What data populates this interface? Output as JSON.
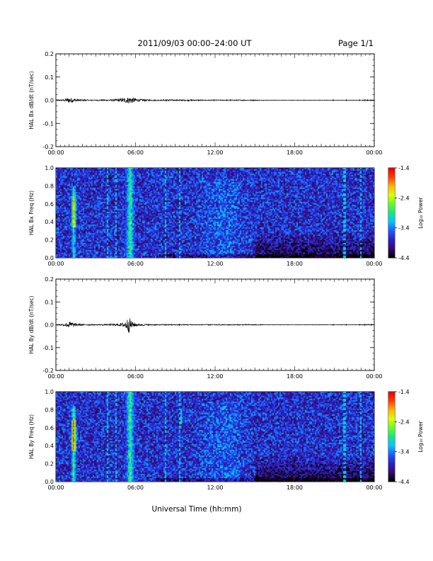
{
  "header": {
    "title": "2011/09/03  00:00–24:00 UT",
    "page": "Page 1/1"
  },
  "x_axis_title": "Universal Time (hh:mm)",
  "colors": {
    "trace": "#000000",
    "frame": "#000000",
    "colormap": [
      "#000000",
      "#3b0a6e",
      "#2a1fc8",
      "#1f5aff",
      "#00c8ff",
      "#14e68c",
      "#64ff1e",
      "#dcff00",
      "#ffb400",
      "#ff3c00",
      "#e60000"
    ]
  },
  "chart_data": [
    {
      "type": "line",
      "panel": "bx-dbdt",
      "ylabel": "HAL Bx dB/dt (nT/sec)",
      "xlim": [
        0,
        24
      ],
      "ylim": [
        -0.2,
        0.2
      ],
      "xtick_labels": [
        "00:00",
        "06:00",
        "12:00",
        "18:00",
        "00:00"
      ],
      "ytick_labels": [
        "0.2",
        "0.1",
        "0.0",
        "-0.1",
        "-0.2"
      ],
      "ytick_values": [
        0.2,
        0.1,
        0.0,
        -0.1,
        -0.2
      ],
      "series": [
        {
          "x": [
            0,
            0.5,
            0.8,
            1.0,
            1.2,
            1.5,
            2.0,
            3.0,
            4.0,
            4.5,
            5.0,
            5.3,
            5.6,
            5.9,
            6.3,
            7.0,
            8.0,
            8.5,
            9.0,
            10.0,
            11.0,
            12.0,
            13.0,
            14.0,
            15.0,
            16.0,
            17.0,
            18.0,
            19.0,
            20.0,
            21.0,
            22.0,
            23.0,
            23.5,
            24.0
          ],
          "y": [
            0.002,
            0.003,
            0.008,
            0.012,
            0.01,
            0.006,
            0.003,
            0.002,
            0.003,
            0.005,
            0.008,
            0.012,
            0.015,
            0.01,
            0.005,
            0.003,
            0.002,
            0.004,
            0.002,
            0.003,
            0.002,
            0.002,
            0.002,
            0.002,
            0.002,
            0.001,
            0.001,
            0.001,
            0.001,
            0.001,
            0.001,
            0.001,
            0.001,
            0.003,
            0.001
          ]
        }
      ]
    },
    {
      "type": "heatmap",
      "panel": "bx-spectrogram",
      "ylabel": "HAL Bx Freq (Hz)",
      "xlim": [
        0,
        24
      ],
      "ylim": [
        0,
        1.0
      ],
      "xtick_labels": [
        "00:00",
        "06:00",
        "12:00",
        "18:00",
        "00:00"
      ],
      "ytick_labels": [
        "1.0",
        "0.8",
        "0.6",
        "0.4",
        "0.2",
        "0.0"
      ],
      "ytick_values": [
        1.0,
        0.8,
        0.6,
        0.4,
        0.2,
        0.0
      ],
      "colorbar": {
        "label": "Log₁₀ Power",
        "range": [
          -4.4,
          -1.4
        ],
        "tick_labels": [
          "-1.4",
          "-2.4",
          "-3.4",
          "-4.4"
        ],
        "tick_values": [
          -1.4,
          -2.4,
          -3.4,
          -4.4
        ]
      },
      "bright_vertical_lines_hours": [
        3.8,
        4.5,
        8.2,
        9.3,
        21.7,
        22.9
      ],
      "features": [
        {
          "name": "pc1-band",
          "hours": [
            1.0,
            1.6
          ],
          "freq": [
            0.0,
            0.8
          ],
          "peak_log10": -2.0
        },
        {
          "name": "broadband-05",
          "hours": [
            5.0,
            6.1
          ],
          "freq": [
            0.0,
            1.0
          ],
          "peak_log10": -2.6
        },
        {
          "name": "patch-13h",
          "hours": [
            13.4,
            13.6
          ],
          "freq": [
            0.72,
            0.8
          ],
          "peak_log10": -2.5
        }
      ]
    },
    {
      "type": "line",
      "panel": "by-dbdt",
      "ylabel": "HAL By dB/dt (nT/sec)",
      "xlim": [
        0,
        24
      ],
      "ylim": [
        -0.2,
        0.2
      ],
      "xtick_labels": [
        "00:00",
        "06:00",
        "12:00",
        "18:00",
        "00:00"
      ],
      "ytick_labels": [
        "0.2",
        "0.1",
        "0.0",
        "-0.1",
        "-0.2"
      ],
      "ytick_values": [
        0.2,
        0.1,
        0.0,
        -0.1,
        -0.2
      ],
      "series": [
        {
          "x": [
            0,
            0.5,
            0.8,
            1.0,
            1.2,
            1.5,
            2.0,
            3.0,
            4.0,
            4.5,
            5.0,
            5.3,
            5.5,
            5.8,
            6.2,
            7.0,
            8.0,
            9.0,
            10.0,
            11.0,
            12.0,
            13.0,
            14.0,
            15.0,
            16.0,
            17.0,
            18.0,
            19.0,
            20.0,
            21.0,
            22.0,
            23.0,
            23.5,
            24.0
          ],
          "y": [
            0.002,
            0.004,
            0.01,
            0.015,
            0.012,
            0.006,
            0.003,
            0.002,
            0.003,
            0.004,
            0.008,
            0.02,
            0.035,
            0.012,
            0.005,
            0.003,
            0.002,
            0.002,
            0.002,
            0.002,
            0.002,
            0.002,
            0.002,
            0.002,
            0.001,
            0.001,
            0.001,
            0.001,
            0.001,
            0.001,
            0.001,
            0.001,
            0.003,
            0.001
          ]
        }
      ]
    },
    {
      "type": "heatmap",
      "panel": "by-spectrogram",
      "ylabel": "HAL By Freq (Hz)",
      "xlim": [
        0,
        24
      ],
      "ylim": [
        0,
        1.0
      ],
      "xtick_labels": [
        "00:00",
        "06:00",
        "12:00",
        "18:00",
        "00:00"
      ],
      "ytick_labels": [
        "1.0",
        "0.8",
        "0.6",
        "0.4",
        "0.2",
        "0.0"
      ],
      "ytick_values": [
        1.0,
        0.8,
        0.6,
        0.4,
        0.2,
        0.0
      ],
      "colorbar": {
        "label": "Log₁₀ Power",
        "range": [
          -4.4,
          -1.4
        ],
        "tick_labels": [
          "-1.4",
          "-2.4",
          "-3.4",
          "-4.4"
        ],
        "tick_values": [
          -1.4,
          -2.4,
          -3.4,
          -4.4
        ]
      },
      "bright_vertical_lines_hours": [
        3.8,
        4.5,
        8.2,
        9.3,
        21.7,
        22.9
      ],
      "features": [
        {
          "name": "pc1-band",
          "hours": [
            1.0,
            1.6
          ],
          "freq": [
            0.0,
            0.85
          ],
          "peak_log10": -1.6
        },
        {
          "name": "broadband-05",
          "hours": [
            5.0,
            6.1
          ],
          "freq": [
            0.0,
            1.0
          ],
          "peak_log10": -2.6
        },
        {
          "name": "patch-09h",
          "hours": [
            9.3,
            9.5
          ],
          "freq": [
            0.65,
            0.82
          ],
          "peak_log10": -2.6
        },
        {
          "name": "patch-13h",
          "hours": [
            13.4,
            13.6
          ],
          "freq": [
            0.72,
            0.8
          ],
          "peak_log10": -2.6
        }
      ]
    }
  ]
}
